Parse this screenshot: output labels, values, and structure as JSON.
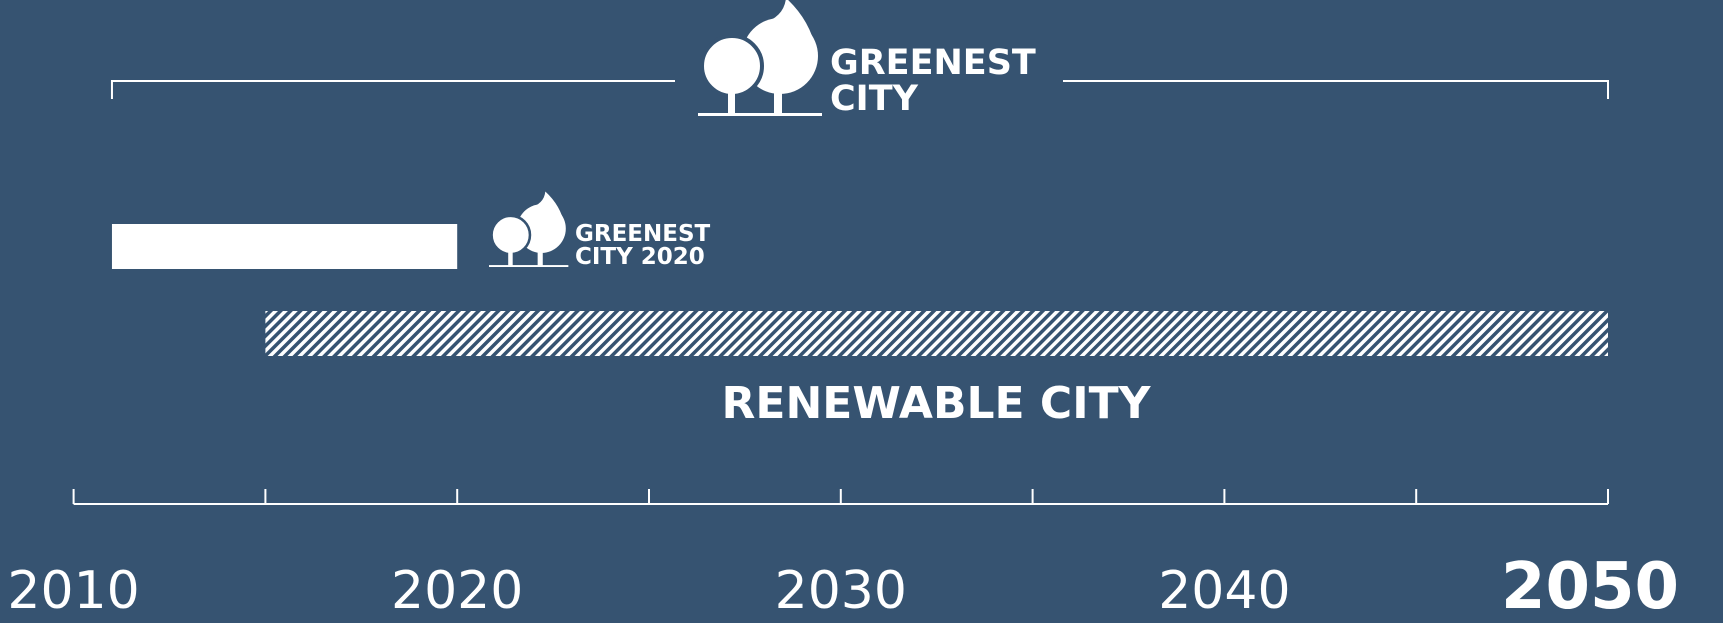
{
  "axis": {
    "xlim": [
      2010,
      2050
    ],
    "ticks": [
      2010,
      2015,
      2020,
      2025,
      2030,
      2035,
      2040,
      2045,
      2050
    ],
    "labels": [
      2010,
      2020,
      2030,
      2040,
      2050
    ]
  },
  "greenest_city": {
    "line1": "GREENEST",
    "line2": "CITY",
    "start": 2011,
    "end": 2050
  },
  "greenest_city_2020": {
    "line1": "GREENEST",
    "line2": "CITY 2020",
    "start": 2011,
    "end": 2020
  },
  "renewable_city": {
    "label": "RENEWABLE CITY",
    "start": 2015,
    "end": 2050
  }
}
